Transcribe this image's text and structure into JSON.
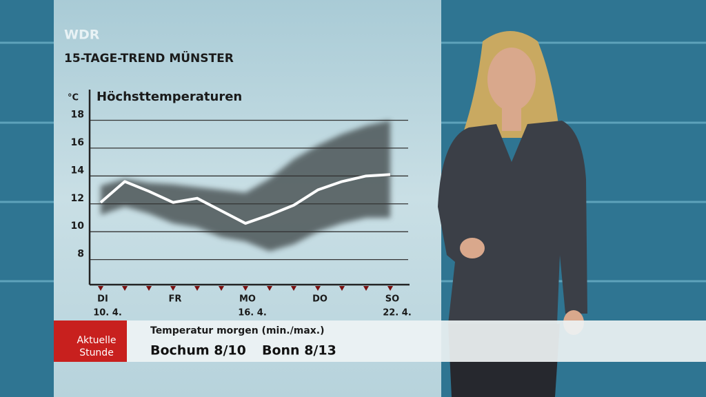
{
  "header": {
    "logo": "WDR",
    "title": "15-TAGE-TREND MÜNSTER"
  },
  "chart_data": {
    "type": "line",
    "title": "Höchsttemperaturen",
    "y_unit": "°C",
    "categories": [
      "DI",
      null,
      null,
      "FR",
      null,
      null,
      "MO",
      null,
      null,
      "DO",
      null,
      null,
      "SO"
    ],
    "dates": [
      "10. 4.",
      null,
      null,
      null,
      null,
      null,
      "16. 4.",
      null,
      null,
      null,
      null,
      null,
      "22. 4."
    ],
    "series": [
      {
        "color": "#ffffff",
        "values": [
          12.1,
          13.6,
          12.9,
          12.1,
          12.4,
          11.5,
          10.6,
          11.2,
          11.9,
          13.0,
          13.6,
          14.0,
          14.1
        ]
      }
    ],
    "range": {
      "color": "#4e5658",
      "upper": [
        13.3,
        13.8,
        13.5,
        13.4,
        13.2,
        13.0,
        12.8,
        13.8,
        15.2,
        16.2,
        17.0,
        17.6,
        18.0
      ],
      "lower": [
        11.2,
        11.8,
        11.3,
        10.6,
        10.3,
        9.6,
        9.3,
        8.6,
        9.1,
        10.0,
        10.6,
        11.0,
        11.0
      ]
    },
    "ylim": [
      6.2,
      20.2
    ],
    "yticks": [
      8,
      10,
      12,
      14,
      16,
      18
    ],
    "grid": true
  },
  "ticker": {
    "badge": [
      "Aktuelle",
      "Stunde"
    ],
    "heading": "Temperatur morgen (min./max.)",
    "items": [
      "Bochum 8/10",
      "Bonn 8/13"
    ]
  }
}
